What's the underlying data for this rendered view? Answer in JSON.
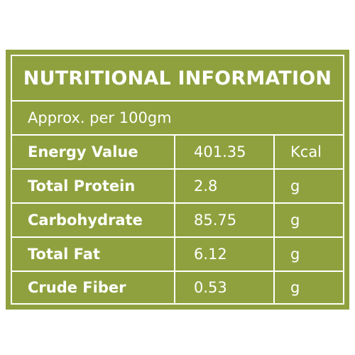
{
  "title": "NUTRITIONAL INFORMATION",
  "subtitle": "Approx. per 100gm",
  "rows": [
    {
      "name": "Energy Value",
      "value": "401.35",
      "unit": "Kcal"
    },
    {
      "name": "Total Protein",
      "value": "2.8",
      "unit": "g"
    },
    {
      "name": "Carbohydrate",
      "value": "85.75",
      "unit": "g"
    },
    {
      "name": "Total Fat",
      "value": "6.12",
      "unit": "g"
    },
    {
      "name": "Crude Fiber",
      "value": "0.53",
      "unit": "g"
    }
  ],
  "colors": {
    "panel": "#8fa13e",
    "text": "#ffffff"
  }
}
